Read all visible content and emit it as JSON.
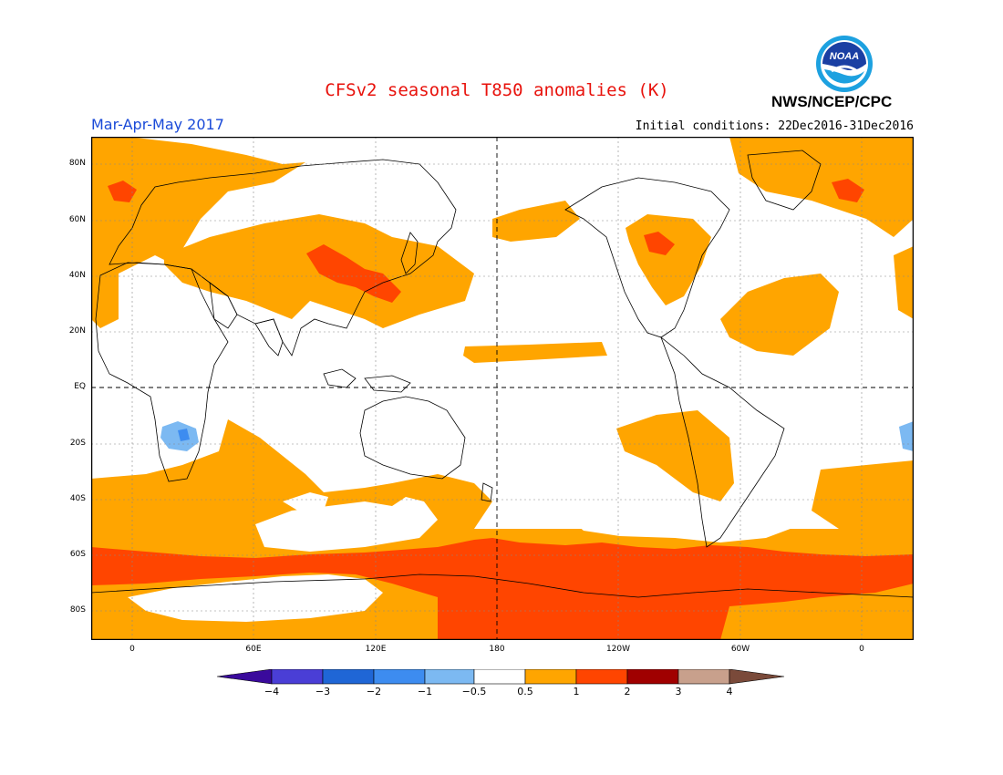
{
  "header": {
    "title": "CFSv2 seasonal T850 anomalies (K)",
    "season": "Mar-Apr-May 2017",
    "initial_conditions": "Initial conditions: 22Dec2016-31Dec2016",
    "agency": "NWS/NCEP/CPC",
    "logo_text": "NOAA"
  },
  "colors": {
    "title": "#e8120c",
    "season": "#1a4ad8",
    "land_outline": "#000000",
    "palette": [
      "#3a0a9c",
      "#4a3ed6",
      "#1f66d6",
      "#3d8cf0",
      "#7cb9f2",
      "#ffffff",
      "#ffffff",
      "#ffa500",
      "#ff4500",
      "#a00000",
      "#c8a08c",
      "#7a4a3a"
    ]
  },
  "map": {
    "lat_labels": [
      "80N",
      "60N",
      "40N",
      "20N",
      "EQ",
      "20S",
      "40S",
      "60S",
      "80S"
    ],
    "lon_labels": [
      "0",
      "60E",
      "120E",
      "180",
      "120W",
      "60W",
      "0"
    ],
    "field": "T850 anomaly"
  },
  "colorbar": {
    "labels": [
      "−4",
      "−3",
      "−2",
      "−1",
      "−0.5",
      "0.5",
      "1",
      "2",
      "3",
      "4"
    ]
  }
}
